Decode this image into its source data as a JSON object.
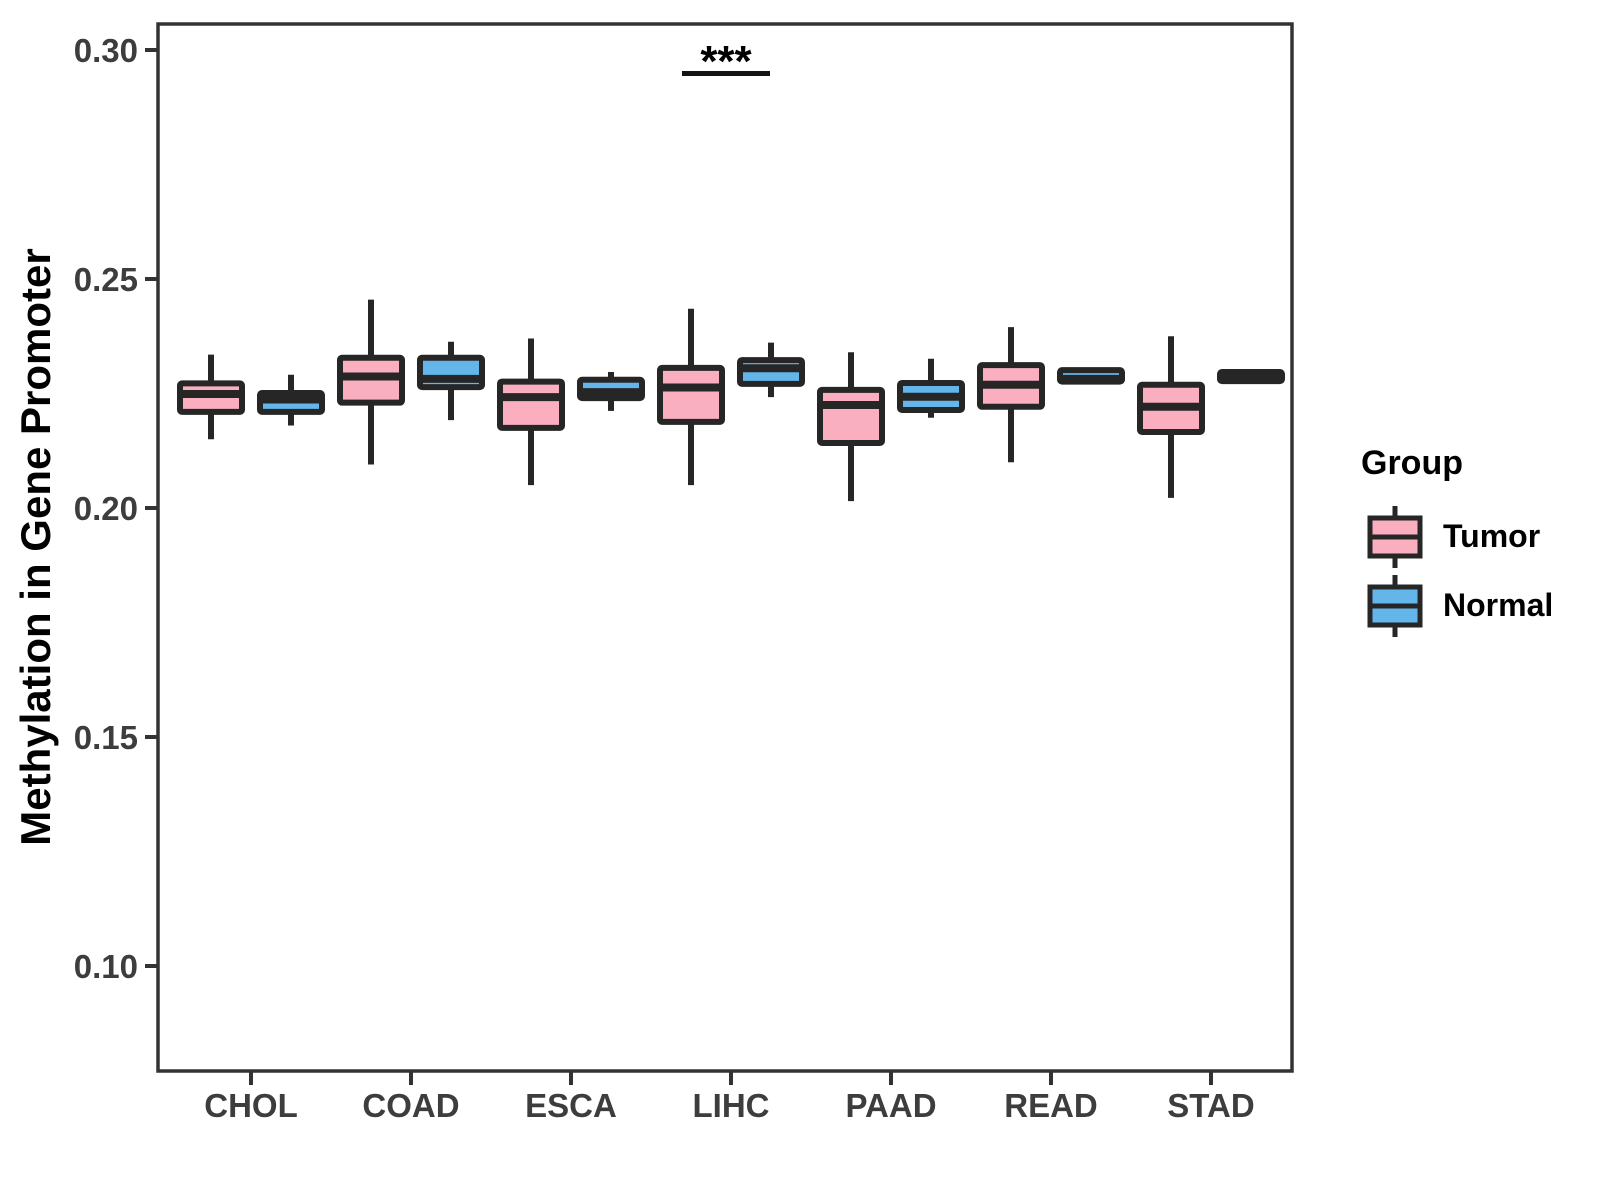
{
  "axes": {
    "y_title": "Methylation in Gene Promoter"
  },
  "legend": {
    "title": "Group",
    "entries": [
      {
        "label": "Tumor",
        "color": "#F9AFC0"
      },
      {
        "label": "Normal",
        "color": "#64B6EA"
      }
    ]
  },
  "colors": {
    "tumor_fill": "#F9AFC0",
    "normal_fill": "#64B6EA",
    "box_border": "#262626",
    "panel_border": "#333333",
    "axis_text": "#3D3D3D",
    "annotation": "#000000",
    "background": "#FFFFFF"
  },
  "chart_data": {
    "type": "boxplot",
    "title": "",
    "xlabel": "",
    "ylabel": "Methylation in Gene Promoter",
    "legend_title": "Group",
    "legend_position": "right",
    "grid": false,
    "categories": [
      "CHOL",
      "COAD",
      "ESCA",
      "LIHC",
      "PAAD",
      "READ",
      "STAD"
    ],
    "y_ticks": [
      0.3,
      0.25,
      0.2,
      0.15,
      0.1
    ],
    "y_tick_labels": [
      "0.30",
      "0.25",
      "0.20",
      "0.15",
      "0.10"
    ],
    "ylim": [
      0.077,
      0.306
    ],
    "groups": [
      {
        "name": "Tumor",
        "fill": "#F9AFC0",
        "boxes": [
          {
            "category": "CHOL",
            "whisker_low": 0.215,
            "q1": 0.221,
            "median": 0.2249,
            "q3": 0.2272,
            "whisker_high": 0.2335
          },
          {
            "category": "COAD",
            "whisker_low": 0.2095,
            "q1": 0.223,
            "median": 0.2287,
            "q3": 0.2328,
            "whisker_high": 0.2455
          },
          {
            "category": "ESCA",
            "whisker_low": 0.205,
            "q1": 0.2175,
            "median": 0.2242,
            "q3": 0.2276,
            "whisker_high": 0.237
          },
          {
            "category": "LIHC",
            "whisker_low": 0.205,
            "q1": 0.2188,
            "median": 0.2263,
            "q3": 0.2306,
            "whisker_high": 0.2435
          },
          {
            "category": "PAAD",
            "whisker_low": 0.2015,
            "q1": 0.2142,
            "median": 0.2225,
            "q3": 0.2258,
            "whisker_high": 0.234
          },
          {
            "category": "READ",
            "whisker_low": 0.21,
            "q1": 0.2221,
            "median": 0.2269,
            "q3": 0.2312,
            "whisker_high": 0.2395
          },
          {
            "category": "STAD",
            "whisker_low": 0.2022,
            "q1": 0.2166,
            "median": 0.2221,
            "q3": 0.2269,
            "whisker_high": 0.2375
          }
        ]
      },
      {
        "name": "Normal",
        "fill": "#64B6EA",
        "boxes": [
          {
            "category": "CHOL",
            "whisker_low": 0.218,
            "q1": 0.221,
            "median": 0.2237,
            "q3": 0.2251,
            "whisker_high": 0.2291
          },
          {
            "category": "COAD",
            "whisker_low": 0.2192,
            "q1": 0.2264,
            "median": 0.2282,
            "q3": 0.2328,
            "whisker_high": 0.2363
          },
          {
            "category": "ESCA",
            "whisker_low": 0.2212,
            "q1": 0.224,
            "median": 0.2253,
            "q3": 0.228,
            "whisker_high": 0.2297
          },
          {
            "category": "LIHC",
            "whisker_low": 0.2242,
            "q1": 0.2271,
            "median": 0.2305,
            "q3": 0.2323,
            "whisker_high": 0.2361
          },
          {
            "category": "PAAD",
            "whisker_low": 0.2197,
            "q1": 0.2214,
            "median": 0.2243,
            "q3": 0.2273,
            "whisker_high": 0.2326
          },
          {
            "category": "READ",
            "whisker_low": 0.2273,
            "q1": 0.2276,
            "median": 0.2282,
            "q3": 0.2301,
            "whisker_high": 0.2302
          },
          {
            "category": "STAD",
            "whisker_low": 0.2272,
            "q1": 0.2277,
            "median": 0.2287,
            "q3": 0.2297,
            "whisker_high": 0.2301
          }
        ]
      }
    ],
    "annotations": [
      {
        "type": "significance",
        "category": "LIHC",
        "label": "***"
      }
    ]
  }
}
